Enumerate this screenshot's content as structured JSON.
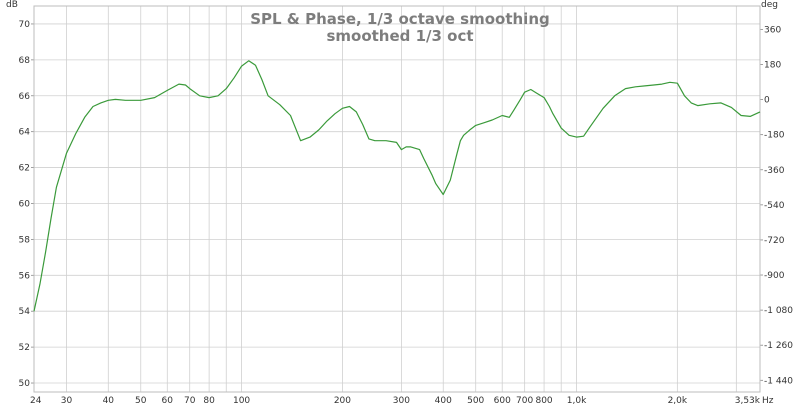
{
  "chart_data": {
    "type": "line",
    "title": "SPL & Phase, 1/3 octave smoothing",
    "subtitle": "smoothed 1/3 oct",
    "ylabel": "dB",
    "y2label": "deg",
    "xunit": "Hz",
    "xscale": "log",
    "xlim": [
      24,
      3530
    ],
    "ylim": [
      49.5,
      71
    ],
    "y2lim": [
      -1500,
      480
    ],
    "grid": true,
    "line_color": "#3a9a3a",
    "grid_color": "#d0d0d0",
    "x_ticks": [
      {
        "v": 24,
        "label": "24"
      },
      {
        "v": 30,
        "label": "30"
      },
      {
        "v": 40,
        "label": "40"
      },
      {
        "v": 50,
        "label": "50"
      },
      {
        "v": 60,
        "label": "60"
      },
      {
        "v": 70,
        "label": "70"
      },
      {
        "v": 80,
        "label": "80"
      },
      {
        "v": 100,
        "label": "100"
      },
      {
        "v": 200,
        "label": "200"
      },
      {
        "v": 300,
        "label": "300"
      },
      {
        "v": 400,
        "label": "400"
      },
      {
        "v": 500,
        "label": "500"
      },
      {
        "v": 600,
        "label": "600"
      },
      {
        "v": 700,
        "label": "700"
      },
      {
        "v": 800,
        "label": "800"
      },
      {
        "v": 1000,
        "label": "1,0k"
      },
      {
        "v": 2000,
        "label": "2,0k"
      },
      {
        "v": 3530,
        "label": "3,53k"
      }
    ],
    "y_ticks": [
      {
        "v": 50,
        "label": "50"
      },
      {
        "v": 52,
        "label": "52"
      },
      {
        "v": 54,
        "label": "54"
      },
      {
        "v": 56,
        "label": "56"
      },
      {
        "v": 58,
        "label": "58"
      },
      {
        "v": 60,
        "label": "60"
      },
      {
        "v": 62,
        "label": "62"
      },
      {
        "v": 64,
        "label": "64"
      },
      {
        "v": 66,
        "label": "66"
      },
      {
        "v": 68,
        "label": "68"
      },
      {
        "v": 70,
        "label": "70"
      }
    ],
    "y2_ticks": [
      {
        "v": 360,
        "label": "360"
      },
      {
        "v": 180,
        "label": "180"
      },
      {
        "v": 0,
        "label": "0"
      },
      {
        "v": -180,
        "label": "-180"
      },
      {
        "v": -360,
        "label": "-360"
      },
      {
        "v": -540,
        "label": "-540"
      },
      {
        "v": -720,
        "label": "-720"
      },
      {
        "v": -900,
        "label": "-900"
      },
      {
        "v": -1080,
        "label": "-1 080"
      },
      {
        "v": -1260,
        "label": "-1 260"
      },
      {
        "v": -1440,
        "label": "-1 440"
      }
    ],
    "series": [
      {
        "x": [
          24,
          25,
          26,
          27,
          28,
          30,
          32,
          34,
          36,
          38,
          40,
          42,
          45,
          50,
          55,
          60,
          65,
          68,
          70,
          75,
          80,
          85,
          90,
          95,
          100,
          105,
          110,
          115,
          120,
          130,
          140,
          150,
          160,
          170,
          180,
          190,
          200,
          210,
          220,
          230,
          240,
          250,
          270,
          290,
          300,
          310,
          320,
          340,
          350,
          370,
          380,
          400,
          420,
          440,
          450,
          460,
          480,
          500,
          530,
          560,
          600,
          630,
          650,
          680,
          700,
          730,
          760,
          800,
          830,
          850,
          900,
          950,
          1000,
          1050,
          1100,
          1200,
          1300,
          1400,
          1500,
          1600,
          1700,
          1800,
          1900,
          2000,
          2100,
          2200,
          2300,
          2500,
          2700,
          2900,
          3100,
          3300,
          3530
        ],
        "y": [
          54.0,
          55.5,
          57.3,
          59.2,
          60.9,
          62.8,
          63.9,
          64.8,
          65.4,
          65.6,
          65.75,
          65.8,
          65.75,
          65.75,
          65.9,
          66.3,
          66.65,
          66.6,
          66.4,
          66.0,
          65.9,
          66.0,
          66.4,
          67.0,
          67.65,
          67.95,
          67.7,
          66.9,
          66.0,
          65.5,
          64.9,
          63.5,
          63.7,
          64.1,
          64.6,
          65.0,
          65.3,
          65.4,
          65.1,
          64.4,
          63.6,
          63.5,
          63.5,
          63.4,
          63.0,
          63.15,
          63.15,
          63.0,
          62.5,
          61.6,
          61.1,
          60.5,
          61.3,
          62.8,
          63.5,
          63.8,
          64.1,
          64.35,
          64.5,
          64.65,
          64.9,
          64.8,
          65.2,
          65.8,
          66.2,
          66.35,
          66.15,
          65.9,
          65.4,
          65.0,
          64.2,
          63.8,
          63.7,
          63.75,
          64.3,
          65.3,
          66.0,
          66.4,
          66.5,
          66.55,
          66.6,
          66.65,
          66.75,
          66.7,
          66.0,
          65.6,
          65.45,
          65.55,
          65.6,
          65.35,
          64.9,
          64.85,
          65.1
        ]
      }
    ]
  }
}
